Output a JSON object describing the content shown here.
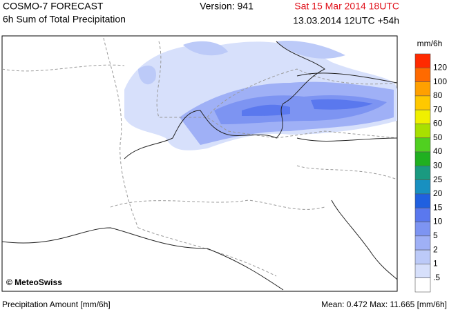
{
  "header": {
    "model": "COSMO-7 FORECAST",
    "product": "6h Sum of Total Precipitation",
    "version": "Version: 941",
    "valid": "Sat 15 Mar 2014 18UTC",
    "run": "13.03.2014 12UTC +54h"
  },
  "legend": {
    "unit": "mm/6h",
    "labels": [
      "120",
      "100",
      "80",
      "70",
      "60",
      "50",
      "40",
      "30",
      "25",
      "20",
      "15",
      "10",
      "5",
      "2",
      "1",
      ".5"
    ],
    "colors": [
      "#ff2a00",
      "#ff6a00",
      "#ffa000",
      "#ffc800",
      "#f0f000",
      "#a8e000",
      "#50d020",
      "#20b020",
      "#1a9a80",
      "#1890c0",
      "#2060e0",
      "#5a78ee",
      "#7d94f2",
      "#9fb0f6",
      "#bccaf8",
      "#d7e0fb",
      "#ffffff"
    ]
  },
  "copyright": "© MeteoSwiss",
  "footer": {
    "left": "Precipitation Amount [mm/6h]",
    "right": "Mean:  0.472 Max:  11.665 [mm/6h]"
  }
}
